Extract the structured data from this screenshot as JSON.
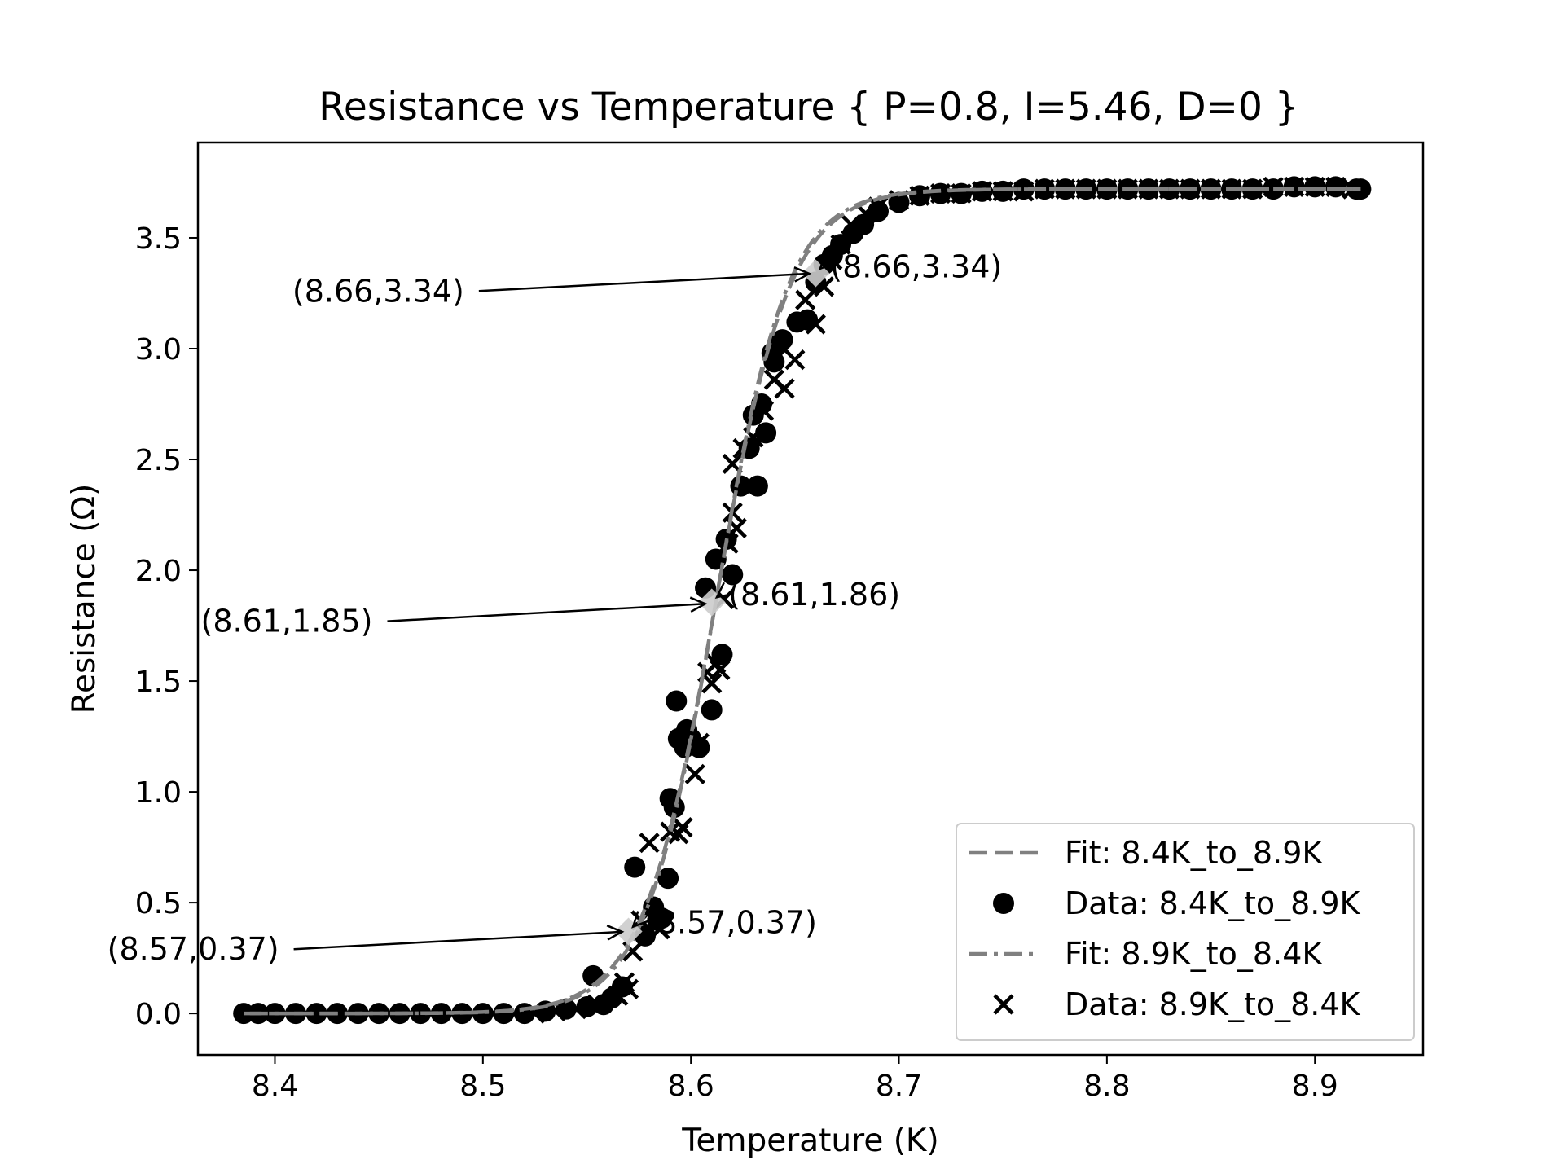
{
  "chart_data": {
    "type": "scatter",
    "title": "Resistance vs Temperature { P=0.8, I=5.46, D=0 }",
    "xlabel": "Temperature (K)",
    "ylabel": "Resistance (Ω)",
    "xlim": [
      8.363,
      8.952
    ],
    "ylim": [
      -0.187,
      3.93
    ],
    "x_ticks": [
      8.4,
      8.5,
      8.6,
      8.7,
      8.8,
      8.9
    ],
    "x_tick_labels": [
      "8.4",
      "8.5",
      "8.6",
      "8.7",
      "8.8",
      "8.9"
    ],
    "y_ticks": [
      0.0,
      0.5,
      1.0,
      1.5,
      2.0,
      2.5,
      3.0,
      3.5
    ],
    "y_tick_labels": [
      "0.0",
      "0.5",
      "1.0",
      "1.5",
      "2.0",
      "2.5",
      "3.0",
      "3.5"
    ],
    "grid": false,
    "legend_position": "lower-right",
    "series": [
      {
        "name": "Fit: 8.4K_to_8.9K",
        "kind": "fit-line",
        "style": "dashed",
        "color": "#808080",
        "model": "logistic",
        "amplitude": 3.72,
        "center": 8.612,
        "width": 0.0177,
        "x_range": [
          8.385,
          8.922
        ]
      },
      {
        "name": "Data: 8.4K_to_8.9K",
        "kind": "scatter",
        "marker": "circle",
        "color": "#000000",
        "points": [
          [
            8.385,
            0.0
          ],
          [
            8.392,
            0.0
          ],
          [
            8.4,
            0.0
          ],
          [
            8.41,
            0.0
          ],
          [
            8.42,
            0.0
          ],
          [
            8.43,
            0.0
          ],
          [
            8.44,
            0.0
          ],
          [
            8.45,
            0.0
          ],
          [
            8.46,
            0.0
          ],
          [
            8.47,
            0.0
          ],
          [
            8.48,
            0.0
          ],
          [
            8.49,
            0.0
          ],
          [
            8.5,
            0.0
          ],
          [
            8.51,
            0.0
          ],
          [
            8.52,
            0.0
          ],
          [
            8.53,
            0.01
          ],
          [
            8.54,
            0.02
          ],
          [
            8.55,
            0.03
          ],
          [
            8.553,
            0.17
          ],
          [
            8.558,
            0.04
          ],
          [
            8.562,
            0.07
          ],
          [
            8.567,
            0.12
          ],
          [
            8.573,
            0.66
          ],
          [
            8.578,
            0.35
          ],
          [
            8.582,
            0.48
          ],
          [
            8.584,
            0.42
          ],
          [
            8.586,
            0.43
          ],
          [
            8.589,
            0.61
          ],
          [
            8.59,
            0.97
          ],
          [
            8.592,
            0.93
          ],
          [
            8.593,
            1.41
          ],
          [
            8.594,
            1.24
          ],
          [
            8.597,
            1.2
          ],
          [
            8.598,
            1.28
          ],
          [
            8.6,
            1.24
          ],
          [
            8.604,
            1.2
          ],
          [
            8.607,
            1.92
          ],
          [
            8.61,
            1.37
          ],
          [
            8.612,
            2.05
          ],
          [
            8.615,
            1.62
          ],
          [
            8.617,
            2.14
          ],
          [
            8.62,
            1.98
          ],
          [
            8.624,
            2.38
          ],
          [
            8.628,
            2.55
          ],
          [
            8.63,
            2.7
          ],
          [
            8.632,
            2.38
          ],
          [
            8.634,
            2.75
          ],
          [
            8.636,
            2.62
          ],
          [
            8.639,
            2.98
          ],
          [
            8.64,
            2.94
          ],
          [
            8.642,
            3.02
          ],
          [
            8.644,
            3.04
          ],
          [
            8.651,
            3.12
          ],
          [
            8.656,
            3.13
          ],
          [
            8.66,
            3.3
          ],
          [
            8.664,
            3.38
          ],
          [
            8.668,
            3.42
          ],
          [
            8.672,
            3.47
          ],
          [
            8.678,
            3.52
          ],
          [
            8.683,
            3.56
          ],
          [
            8.69,
            3.62
          ],
          [
            8.7,
            3.66
          ],
          [
            8.71,
            3.69
          ],
          [
            8.72,
            3.7
          ],
          [
            8.73,
            3.7
          ],
          [
            8.74,
            3.71
          ],
          [
            8.75,
            3.71
          ],
          [
            8.76,
            3.72
          ],
          [
            8.77,
            3.72
          ],
          [
            8.78,
            3.72
          ],
          [
            8.79,
            3.72
          ],
          [
            8.8,
            3.72
          ],
          [
            8.81,
            3.72
          ],
          [
            8.82,
            3.72
          ],
          [
            8.83,
            3.72
          ],
          [
            8.84,
            3.72
          ],
          [
            8.85,
            3.72
          ],
          [
            8.86,
            3.72
          ],
          [
            8.87,
            3.72
          ],
          [
            8.88,
            3.72
          ],
          [
            8.89,
            3.73
          ],
          [
            8.9,
            3.73
          ],
          [
            8.91,
            3.73
          ],
          [
            8.92,
            3.72
          ],
          [
            8.922,
            3.72
          ]
        ]
      },
      {
        "name": "Fit: 8.9K_to_8.4K",
        "kind": "fit-line",
        "style": "dashdot",
        "color": "#808080",
        "model": "logistic",
        "amplitude": 3.72,
        "center": 8.612,
        "width": 0.0172,
        "x_range": [
          8.388,
          8.918
        ]
      },
      {
        "name": "Data: 8.9K_to_8.4K",
        "kind": "scatter",
        "marker": "x",
        "color": "#000000",
        "points": [
          [
            8.388,
            0.0
          ],
          [
            8.395,
            0.0
          ],
          [
            8.405,
            0.0
          ],
          [
            8.415,
            0.0
          ],
          [
            8.425,
            0.0
          ],
          [
            8.435,
            0.0
          ],
          [
            8.445,
            0.0
          ],
          [
            8.455,
            0.0
          ],
          [
            8.465,
            0.0
          ],
          [
            8.475,
            0.0
          ],
          [
            8.485,
            0.0
          ],
          [
            8.495,
            0.0
          ],
          [
            8.505,
            0.0
          ],
          [
            8.515,
            0.0
          ],
          [
            8.525,
            0.0
          ],
          [
            8.535,
            0.01
          ],
          [
            8.545,
            0.02
          ],
          [
            8.555,
            0.04
          ],
          [
            8.565,
            0.08
          ],
          [
            8.568,
            0.14
          ],
          [
            8.57,
            0.11
          ],
          [
            8.572,
            0.28
          ],
          [
            8.576,
            0.42
          ],
          [
            8.58,
            0.77
          ],
          [
            8.585,
            0.38
          ],
          [
            8.59,
            0.82
          ],
          [
            8.594,
            0.81
          ],
          [
            8.596,
            0.84
          ],
          [
            8.602,
            1.08
          ],
          [
            8.604,
            1.22
          ],
          [
            8.608,
            1.54
          ],
          [
            8.61,
            1.49
          ],
          [
            8.612,
            1.58
          ],
          [
            8.614,
            1.55
          ],
          [
            8.616,
            1.87
          ],
          [
            8.618,
            2.12
          ],
          [
            8.62,
            2.26
          ],
          [
            8.622,
            2.19
          ],
          [
            8.62,
            2.48
          ],
          [
            8.625,
            2.55
          ],
          [
            8.63,
            2.6
          ],
          [
            8.635,
            2.72
          ],
          [
            8.64,
            2.86
          ],
          [
            8.645,
            2.82
          ],
          [
            8.65,
            2.95
          ],
          [
            8.655,
            3.22
          ],
          [
            8.66,
            3.11
          ],
          [
            8.664,
            3.28
          ],
          [
            8.668,
            3.4
          ],
          [
            8.672,
            3.47
          ],
          [
            8.677,
            3.56
          ],
          [
            8.684,
            3.61
          ],
          [
            8.69,
            3.64
          ],
          [
            8.7,
            3.67
          ],
          [
            8.71,
            3.69
          ],
          [
            8.72,
            3.7
          ],
          [
            8.73,
            3.7
          ],
          [
            8.74,
            3.71
          ],
          [
            8.75,
            3.71
          ],
          [
            8.76,
            3.71
          ],
          [
            8.77,
            3.72
          ],
          [
            8.78,
            3.72
          ],
          [
            8.79,
            3.72
          ],
          [
            8.8,
            3.72
          ],
          [
            8.81,
            3.72
          ],
          [
            8.82,
            3.72
          ],
          [
            8.83,
            3.72
          ],
          [
            8.84,
            3.72
          ],
          [
            8.85,
            3.72
          ],
          [
            8.86,
            3.72
          ],
          [
            8.87,
            3.72
          ],
          [
            8.88,
            3.73
          ],
          [
            8.89,
            3.73
          ],
          [
            8.9,
            3.73
          ],
          [
            8.91,
            3.73
          ],
          [
            8.918,
            3.72
          ]
        ]
      }
    ],
    "highlight_markers": [
      {
        "x": 8.57,
        "y": 0.37,
        "color": "#cccccc"
      },
      {
        "x": 8.61,
        "y": 1.855,
        "color": "#cccccc"
      },
      {
        "x": 8.66,
        "y": 3.34,
        "color": "#cccccc"
      }
    ],
    "annotations": [
      {
        "text": "(8.57,0.37)",
        "x": 8.57,
        "y": 0.37,
        "text_x": 8.402,
        "text_y": 0.29,
        "anchor": "end"
      },
      {
        "text": "(8.57,0.37)",
        "x": 8.57,
        "y": 0.37,
        "text_x": 8.578,
        "text_y": 0.41,
        "anchor": "start"
      },
      {
        "text": "(8.61,1.85)",
        "x": 8.61,
        "y": 1.85,
        "text_x": 8.447,
        "text_y": 1.77,
        "anchor": "end"
      },
      {
        "text": "(8.61,1.86)",
        "x": 8.61,
        "y": 1.86,
        "text_x": 8.618,
        "text_y": 1.89,
        "anchor": "start"
      },
      {
        "text": "(8.66,3.34)",
        "x": 8.66,
        "y": 3.34,
        "text_x": 8.491,
        "text_y": 3.26,
        "anchor": "end"
      },
      {
        "text": "(8.66,3.34)",
        "x": 8.66,
        "y": 3.34,
        "text_x": 8.667,
        "text_y": 3.37,
        "anchor": "start"
      }
    ]
  }
}
